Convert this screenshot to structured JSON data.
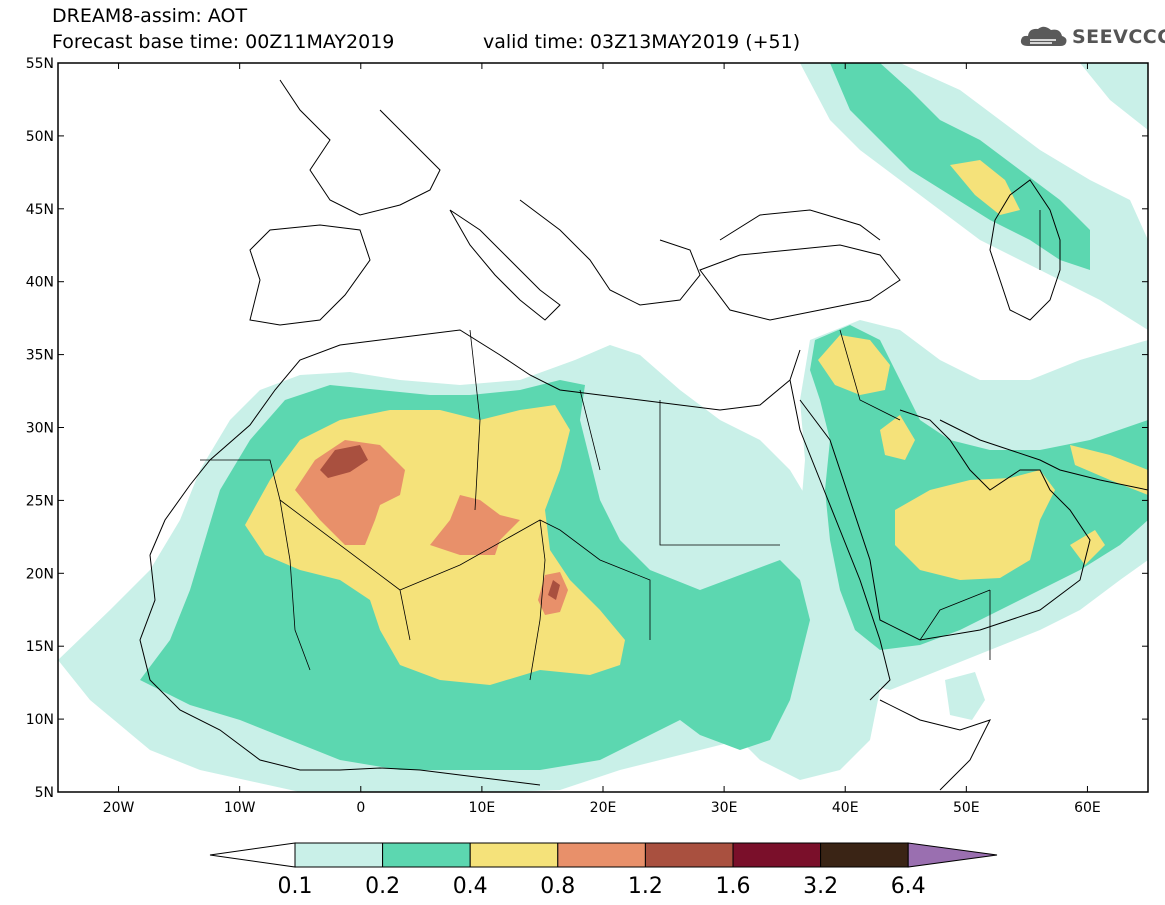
{
  "title": {
    "line1": "DREAM8-assim: AOT",
    "line2": "Forecast base time: 00Z11MAY2019",
    "valid": "valid time: 03Z13MAY2019 (+51)"
  },
  "logo": {
    "text": "SEEVCCC",
    "icon": "cloud-icon"
  },
  "map": {
    "lon_range": [
      -25,
      65
    ],
    "lat_range": [
      5,
      55
    ],
    "lat_ticks": [
      "5N",
      "10N",
      "15N",
      "20N",
      "25N",
      "30N",
      "35N",
      "40N",
      "45N",
      "50N",
      "55N"
    ],
    "lon_ticks": [
      "20W",
      "10W",
      "0",
      "10E",
      "20E",
      "30E",
      "40E",
      "50E",
      "60E"
    ]
  },
  "colorbar": {
    "labels": [
      "0.1",
      "0.2",
      "0.4",
      "0.8",
      "1.2",
      "1.6",
      "3.2",
      "6.4"
    ],
    "colors": {
      "c0": "#ffffff",
      "c1": "#c9f0e8",
      "c2": "#5cd7b0",
      "c3": "#f5e27a",
      "c4": "#e8906a",
      "c5": "#a9503f",
      "c6": "#7a0f2a",
      "c7": "#3a2415",
      "c8": "#9a6fb0"
    }
  }
}
